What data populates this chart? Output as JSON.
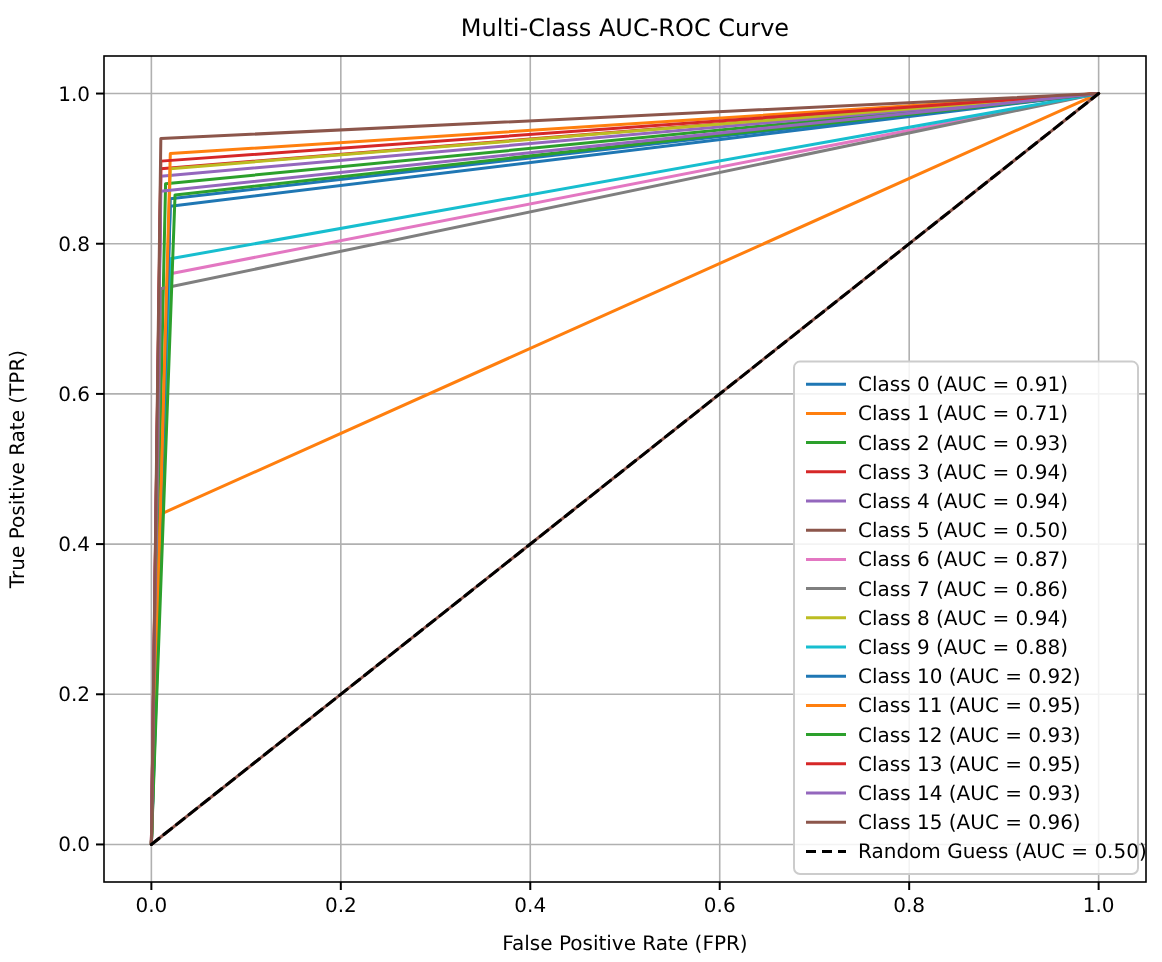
{
  "chart_data": {
    "type": "line",
    "title": "Multi-Class AUC-ROC Curve",
    "xlabel": "False Positive Rate (FPR)",
    "ylabel": "True Positive Rate (TPR)",
    "xlim": [
      -0.05,
      1.05
    ],
    "ylim": [
      -0.05,
      1.05
    ],
    "xticks": [
      {
        "value": 0,
        "label": "0.0"
      },
      {
        "value": 0.2,
        "label": "0.2"
      },
      {
        "value": 0.4,
        "label": "0.4"
      },
      {
        "value": 0.6,
        "label": "0.6"
      },
      {
        "value": 0.8,
        "label": "0.8"
      },
      {
        "value": 1,
        "label": "1.0"
      }
    ],
    "yticks": [
      {
        "value": 0,
        "label": "0.0"
      },
      {
        "value": 0.2,
        "label": "0.2"
      },
      {
        "value": 0.4,
        "label": "0.4"
      },
      {
        "value": 0.6,
        "label": "0.6"
      },
      {
        "value": 0.8,
        "label": "0.8"
      },
      {
        "value": 1,
        "label": "1.0"
      }
    ],
    "grid": true,
    "legend": "bottom right",
    "marker": "none",
    "line_style": "solid",
    "series": [
      {
        "name": "Class 0 (AUC = 0.91)",
        "color": "#1f77b4",
        "x": [
          0,
          0.02,
          1
        ],
        "values": [
          0,
          0.85,
          1
        ]
      },
      {
        "name": "Class 1 (AUC = 0.71)",
        "color": "#ff7f0e",
        "x": [
          0,
          0.01,
          1
        ],
        "values": [
          0,
          0.44,
          1
        ]
      },
      {
        "name": "Class 2 (AUC = 0.93)",
        "color": "#2ca02c",
        "x": [
          0,
          0.015,
          1
        ],
        "values": [
          0,
          0.88,
          1
        ]
      },
      {
        "name": "Class 3 (AUC = 0.94)",
        "color": "#d62728",
        "x": [
          0,
          0.01,
          1
        ],
        "values": [
          0,
          0.9,
          1
        ]
      },
      {
        "name": "Class 4 (AUC = 0.94)",
        "color": "#9467bd",
        "x": [
          0,
          0.01,
          1
        ],
        "values": [
          0,
          0.89,
          1
        ]
      },
      {
        "name": "Class 5 (AUC = 0.50)",
        "color": "#8c564b",
        "x": [
          0,
          1
        ],
        "values": [
          0,
          1
        ]
      },
      {
        "name": "Class 6 (AUC = 0.87)",
        "color": "#e377c2",
        "x": [
          0,
          0.02,
          1
        ],
        "values": [
          0,
          0.76,
          1
        ]
      },
      {
        "name": "Class 7 (AUC = 0.86)",
        "color": "#7f7f7f",
        "x": [
          0,
          0.01,
          1
        ],
        "values": [
          0,
          0.74,
          1
        ]
      },
      {
        "name": "Class 8 (AUC = 0.94)",
        "color": "#bcbd22",
        "x": [
          0,
          0.02,
          1
        ],
        "values": [
          0,
          0.9,
          1
        ]
      },
      {
        "name": "Class 9 (AUC = 0.88)",
        "color": "#17becf",
        "x": [
          0,
          0.02,
          1
        ],
        "values": [
          0,
          0.78,
          1
        ]
      },
      {
        "name": "Class 10 (AUC = 0.92)",
        "color": "#1f77b4",
        "x": [
          0,
          0.02,
          1
        ],
        "values": [
          0,
          0.86,
          1
        ]
      },
      {
        "name": "Class 11 (AUC = 0.95)",
        "color": "#ff7f0e",
        "x": [
          0,
          0.02,
          1
        ],
        "values": [
          0,
          0.92,
          1
        ]
      },
      {
        "name": "Class 12 (AUC = 0.93)",
        "color": "#2ca02c",
        "x": [
          0,
          0.025,
          1
        ],
        "values": [
          0,
          0.865,
          1
        ]
      },
      {
        "name": "Class 13 (AUC = 0.95)",
        "color": "#d62728",
        "x": [
          0,
          0.01,
          1
        ],
        "values": [
          0,
          0.91,
          1
        ]
      },
      {
        "name": "Class 14 (AUC = 0.93)",
        "color": "#9467bd",
        "x": [
          0,
          0.01,
          1
        ],
        "values": [
          0,
          0.87,
          1
        ]
      },
      {
        "name": "Class 15 (AUC = 0.96)",
        "color": "#8c564b",
        "x": [
          0,
          0.01,
          1
        ],
        "values": [
          0,
          0.94,
          1
        ]
      },
      {
        "name": "Random Guess (AUC = 0.50)",
        "color": "#000000",
        "x": [
          0,
          1
        ],
        "values": [
          0,
          1
        ],
        "line_style": "dashed"
      }
    ]
  }
}
